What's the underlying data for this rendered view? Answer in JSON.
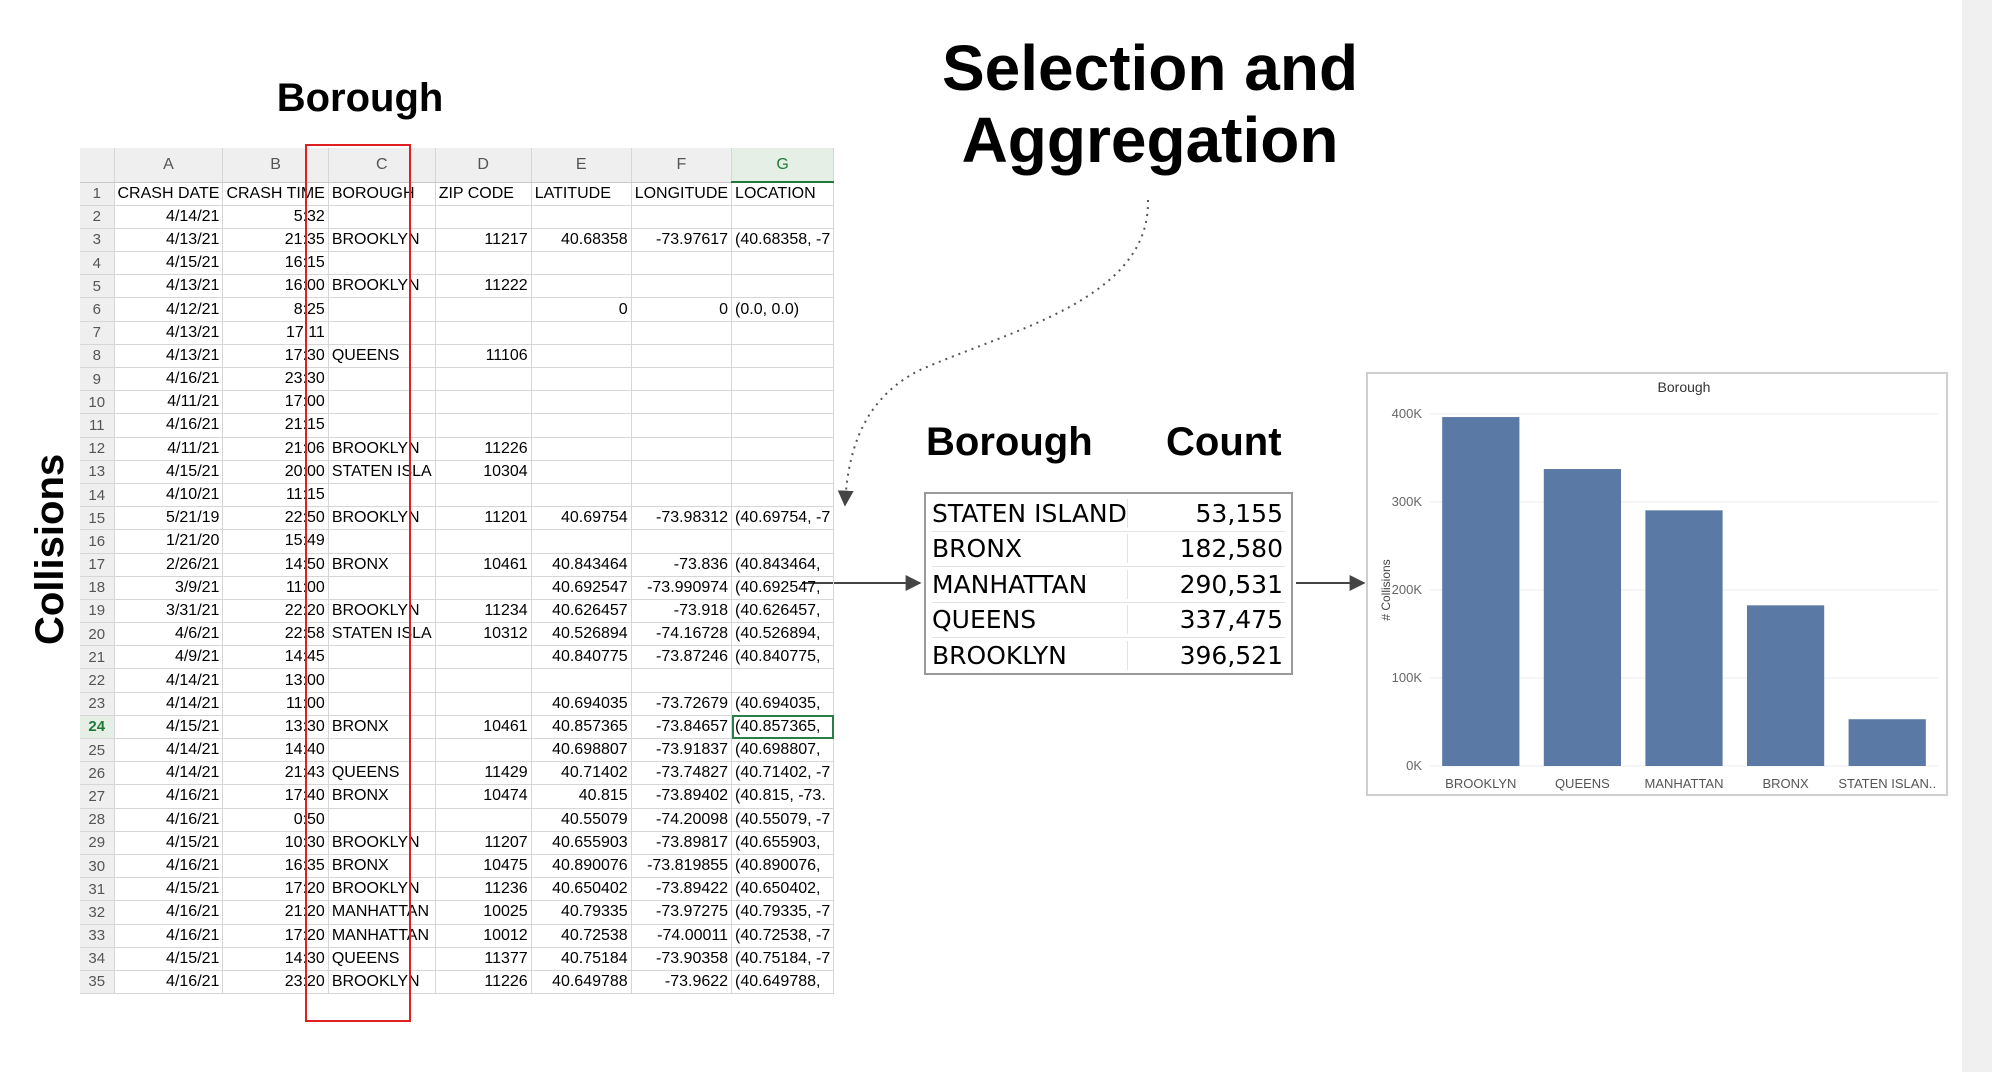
{
  "title": {
    "line1": "Selection and",
    "line2": "Aggregation"
  },
  "labels": {
    "borough_top": "Borough",
    "collisions": "Collisions"
  },
  "spreadsheet": {
    "columns": [
      "A",
      "B",
      "C",
      "D",
      "E",
      "F",
      "G"
    ],
    "active_column": "G",
    "active_row": "24",
    "highlighted_column": "C",
    "rows": [
      [
        "1",
        "CRASH DATE",
        "CRASH TIME",
        "BOROUGH",
        "ZIP CODE",
        "LATITUDE",
        "LONGITUDE",
        "LOCATION"
      ],
      [
        "2",
        "4/14/21",
        "5:32",
        "",
        "",
        "",
        "",
        ""
      ],
      [
        "3",
        "4/13/21",
        "21:35",
        "BROOKLYN",
        "11217",
        "40.68358",
        "-73.97617",
        "(40.68358, -7"
      ],
      [
        "4",
        "4/15/21",
        "16:15",
        "",
        "",
        "",
        "",
        ""
      ],
      [
        "5",
        "4/13/21",
        "16:00",
        "BROOKLYN",
        "11222",
        "",
        "",
        ""
      ],
      [
        "6",
        "4/12/21",
        "8:25",
        "",
        "",
        "0",
        "0",
        "(0.0, 0.0)"
      ],
      [
        "7",
        "4/13/21",
        "17:11",
        "",
        "",
        "",
        "",
        ""
      ],
      [
        "8",
        "4/13/21",
        "17:30",
        "QUEENS",
        "11106",
        "",
        "",
        ""
      ],
      [
        "9",
        "4/16/21",
        "23:30",
        "",
        "",
        "",
        "",
        ""
      ],
      [
        "10",
        "4/11/21",
        "17:00",
        "",
        "",
        "",
        "",
        ""
      ],
      [
        "11",
        "4/16/21",
        "21:15",
        "",
        "",
        "",
        "",
        ""
      ],
      [
        "12",
        "4/11/21",
        "21:06",
        "BROOKLYN",
        "11226",
        "",
        "",
        ""
      ],
      [
        "13",
        "4/15/21",
        "20:00",
        "STATEN ISLA",
        "10304",
        "",
        "",
        ""
      ],
      [
        "14",
        "4/10/21",
        "11:15",
        "",
        "",
        "",
        "",
        ""
      ],
      [
        "15",
        "5/21/19",
        "22:50",
        "BROOKLYN",
        "11201",
        "40.69754",
        "-73.98312",
        "(40.69754, -7"
      ],
      [
        "16",
        "1/21/20",
        "15:49",
        "",
        "",
        "",
        "",
        ""
      ],
      [
        "17",
        "2/26/21",
        "14:50",
        "BRONX",
        "10461",
        "40.843464",
        "-73.836",
        "(40.843464,"
      ],
      [
        "18",
        "3/9/21",
        "11:00",
        "",
        "",
        "40.692547",
        "-73.990974",
        "(40.692547,"
      ],
      [
        "19",
        "3/31/21",
        "22:20",
        "BROOKLYN",
        "11234",
        "40.626457",
        "-73.918",
        "(40.626457,"
      ],
      [
        "20",
        "4/6/21",
        "22:58",
        "STATEN ISLA",
        "10312",
        "40.526894",
        "-74.16728",
        "(40.526894,"
      ],
      [
        "21",
        "4/9/21",
        "14:45",
        "",
        "",
        "40.840775",
        "-73.87246",
        "(40.840775,"
      ],
      [
        "22",
        "4/14/21",
        "13:00",
        "",
        "",
        "",
        "",
        ""
      ],
      [
        "23",
        "4/14/21",
        "11:00",
        "",
        "",
        "40.694035",
        "-73.72679",
        "(40.694035,"
      ],
      [
        "24",
        "4/15/21",
        "13:30",
        "BRONX",
        "10461",
        "40.857365",
        "-73.84657",
        "(40.857365,"
      ],
      [
        "25",
        "4/14/21",
        "14:40",
        "",
        "",
        "40.698807",
        "-73.91837",
        "(40.698807,"
      ],
      [
        "26",
        "4/14/21",
        "21:43",
        "QUEENS",
        "11429",
        "40.71402",
        "-73.74827",
        "(40.71402, -7"
      ],
      [
        "27",
        "4/16/21",
        "17:40",
        "BRONX",
        "10474",
        "40.815",
        "-73.89402",
        "(40.815, -73."
      ],
      [
        "28",
        "4/16/21",
        "0:50",
        "",
        "",
        "40.55079",
        "-74.20098",
        "(40.55079, -7"
      ],
      [
        "29",
        "4/15/21",
        "10:30",
        "BROOKLYN",
        "11207",
        "40.655903",
        "-73.89817",
        "(40.655903,"
      ],
      [
        "30",
        "4/16/21",
        "16:35",
        "BRONX",
        "10475",
        "40.890076",
        "-73.819855",
        "(40.890076,"
      ],
      [
        "31",
        "4/15/21",
        "17:20",
        "BROOKLYN",
        "11236",
        "40.650402",
        "-73.89422",
        "(40.650402,"
      ],
      [
        "32",
        "4/16/21",
        "21:20",
        "MANHATTAN",
        "10025",
        "40.79335",
        "-73.97275",
        "(40.79335, -7"
      ],
      [
        "33",
        "4/16/21",
        "17:20",
        "MANHATTAN",
        "10012",
        "40.72538",
        "-74.00011",
        "(40.72538, -7"
      ],
      [
        "34",
        "4/15/21",
        "14:30",
        "QUEENS",
        "11377",
        "40.75184",
        "-73.90358",
        "(40.75184, -7"
      ],
      [
        "35",
        "4/16/21",
        "23:20",
        "BROOKLYN",
        "11226",
        "40.649788",
        "-73.9622",
        "(40.649788,"
      ]
    ]
  },
  "aggregate": {
    "header_borough": "Borough",
    "header_count": "Count",
    "rows": [
      {
        "borough": "STATEN ISLAND",
        "count": "53,155"
      },
      {
        "borough": "BRONX",
        "count": "182,580"
      },
      {
        "borough": "MANHATTAN",
        "count": "290,531"
      },
      {
        "borough": "QUEENS",
        "count": "337,475"
      },
      {
        "borough": "BROOKLYN",
        "count": "396,521"
      }
    ]
  },
  "chart_data": {
    "type": "bar",
    "title": "Borough",
    "xlabel": "",
    "ylabel": "# Collisions",
    "categories": [
      "BROOKLYN",
      "QUEENS",
      "MANHATTAN",
      "BRONX",
      "STATEN ISLAN.."
    ],
    "values": [
      396521,
      337475,
      290531,
      182580,
      53155
    ],
    "ylim": [
      0,
      400000
    ],
    "yticks": [
      0,
      100000,
      200000,
      300000,
      400000
    ],
    "ytick_labels": [
      "0K",
      "100K",
      "200K",
      "300K",
      "400K"
    ],
    "grid": true,
    "bar_color": "#5b79a5"
  },
  "colors": {
    "highlight_frame": "#e02020",
    "active_cell": "#2a7d46",
    "bar": "#5b79a5"
  }
}
